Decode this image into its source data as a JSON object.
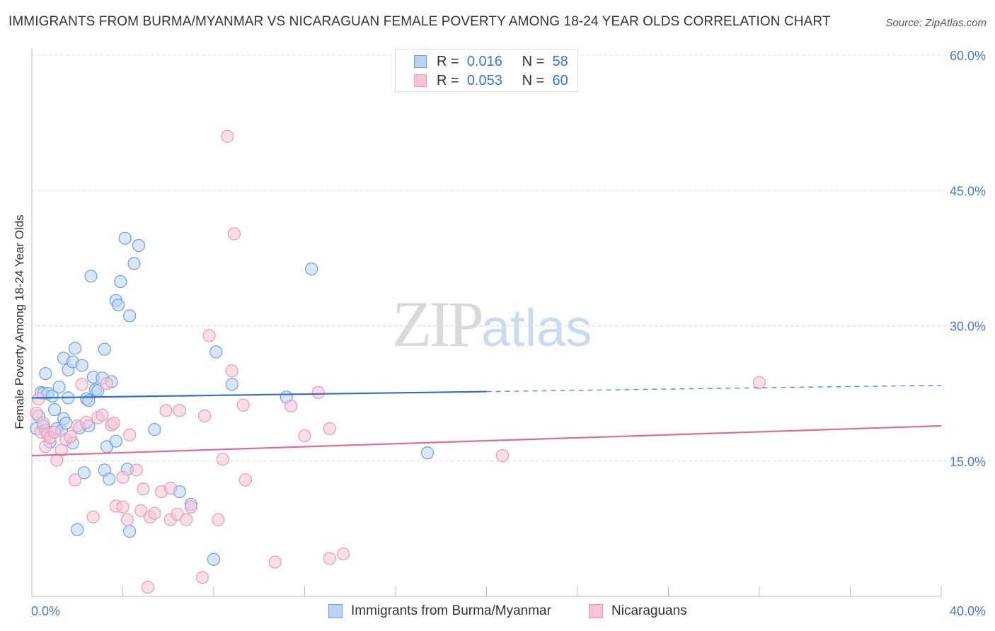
{
  "header": {
    "title": "IMMIGRANTS FROM BURMA/MYANMAR VS NICARAGUAN FEMALE POVERTY AMONG 18-24 YEAR OLDS CORRELATION CHART",
    "source": "Source: ZipAtlas.com"
  },
  "legend": {
    "series1": {
      "r_label": "R =",
      "r_value": "0.016",
      "n_label": "N =",
      "n_value": "58"
    },
    "series2": {
      "r_label": "R =",
      "r_value": "0.053",
      "n_label": "N =",
      "n_value": "60"
    }
  },
  "bottom_legend": {
    "series1": "Immigrants from Burma/Myanmar",
    "series2": "Nicaraguans"
  },
  "watermark": {
    "zip": "ZIP",
    "atlas": "atlas"
  },
  "colors": {
    "blue_fill": "#b9d3f5",
    "blue_stroke": "#6f9fe0",
    "blue_line": "#2f6fcf",
    "pink_fill": "#f8c4d5",
    "pink_stroke": "#e89ab4",
    "pink_line": "#e06b95",
    "tick_text": "#4a7bd0"
  },
  "chart_data": {
    "type": "scatter",
    "title": "IMMIGRANTS FROM BURMA/MYANMAR VS NICARAGUAN FEMALE POVERTY AMONG 18-24 YEAR OLDS CORRELATION CHART",
    "xlabel": "",
    "ylabel": "Female Poverty Among 18-24 Year Olds",
    "xlim": [
      0,
      40
    ],
    "ylim": [
      0,
      60
    ],
    "x_tick_labels": [
      "0.0%",
      "40.0%"
    ],
    "y_ticks": [
      15,
      30,
      45,
      60
    ],
    "y_tick_labels": [
      "15.0%",
      "30.0%",
      "45.0%",
      "60.0%"
    ],
    "series": [
      {
        "name": "Immigrants from Burma/Myanmar",
        "color": "blue",
        "trend": {
          "x0": 0,
          "y0": 22.0,
          "x1": 20,
          "y1": 22.7,
          "dashed_to_x": 40,
          "dashed_to_y": 23.4
        },
        "points": [
          [
            0.2,
            18.6
          ],
          [
            0.3,
            20.0
          ],
          [
            0.4,
            22.6
          ],
          [
            0.5,
            18.9
          ],
          [
            0.5,
            22.5
          ],
          [
            0.6,
            24.7
          ],
          [
            0.7,
            22.5
          ],
          [
            0.8,
            17.1
          ],
          [
            0.9,
            22.2
          ],
          [
            1.0,
            20.7
          ],
          [
            1.1,
            18.6
          ],
          [
            1.2,
            23.2
          ],
          [
            1.3,
            18.4
          ],
          [
            1.4,
            19.7
          ],
          [
            1.4,
            26.4
          ],
          [
            1.5,
            19.2
          ],
          [
            1.6,
            25.1
          ],
          [
            1.6,
            22.0
          ],
          [
            1.8,
            17.0
          ],
          [
            1.8,
            26.0
          ],
          [
            1.9,
            27.5
          ],
          [
            2.1,
            18.7
          ],
          [
            2.2,
            25.6
          ],
          [
            2.3,
            13.7
          ],
          [
            2.4,
            21.9
          ],
          [
            2.5,
            21.7
          ],
          [
            2.5,
            18.9
          ],
          [
            2.6,
            35.5
          ],
          [
            2.7,
            24.3
          ],
          [
            2.8,
            22.9
          ],
          [
            2.9,
            22.8
          ],
          [
            3.1,
            24.2
          ],
          [
            3.2,
            27.4
          ],
          [
            3.2,
            14.0
          ],
          [
            3.3,
            16.6
          ],
          [
            3.4,
            13.0
          ],
          [
            3.5,
            23.8
          ],
          [
            3.7,
            17.2
          ],
          [
            3.7,
            32.8
          ],
          [
            3.8,
            32.3
          ],
          [
            3.9,
            34.9
          ],
          [
            4.1,
            39.7
          ],
          [
            4.2,
            14.1
          ],
          [
            4.3,
            31.1
          ],
          [
            4.5,
            36.9
          ],
          [
            4.7,
            38.9
          ],
          [
            5.4,
            18.5
          ],
          [
            6.5,
            11.6
          ],
          [
            7.0,
            10.2
          ],
          [
            8.0,
            4.1
          ],
          [
            8.1,
            27.1
          ],
          [
            8.8,
            23.5
          ],
          [
            11.2,
            22.1
          ],
          [
            12.3,
            36.3
          ],
          [
            17.4,
            15.9
          ],
          [
            2.0,
            7.4
          ],
          [
            4.3,
            7.2
          ],
          [
            0.6,
            18.4
          ]
        ]
      },
      {
        "name": "Nicaraguans",
        "color": "pink",
        "trend": {
          "x0": 0,
          "y0": 15.6,
          "x1": 40,
          "y1": 18.9
        },
        "points": [
          [
            0.2,
            20.3
          ],
          [
            0.4,
            18.2
          ],
          [
            0.5,
            19.2
          ],
          [
            0.6,
            16.6
          ],
          [
            0.7,
            18.0
          ],
          [
            0.8,
            17.6
          ],
          [
            1.0,
            18.2
          ],
          [
            1.1,
            15.1
          ],
          [
            1.3,
            16.2
          ],
          [
            1.5,
            17.4
          ],
          [
            1.7,
            17.7
          ],
          [
            1.9,
            12.9
          ],
          [
            2.0,
            18.9
          ],
          [
            2.2,
            23.5
          ],
          [
            2.4,
            19.3
          ],
          [
            2.7,
            8.8
          ],
          [
            2.9,
            19.8
          ],
          [
            3.1,
            20.1
          ],
          [
            3.3,
            23.6
          ],
          [
            3.5,
            19.0
          ],
          [
            3.6,
            19.2
          ],
          [
            3.7,
            10.0
          ],
          [
            4.0,
            9.9
          ],
          [
            4.0,
            13.2
          ],
          [
            4.2,
            8.5
          ],
          [
            4.3,
            17.9
          ],
          [
            4.6,
            14.0
          ],
          [
            4.8,
            9.5
          ],
          [
            4.9,
            11.9
          ],
          [
            5.1,
            1.0
          ],
          [
            5.2,
            8.8
          ],
          [
            5.4,
            9.2
          ],
          [
            5.7,
            11.6
          ],
          [
            5.9,
            20.6
          ],
          [
            6.1,
            8.5
          ],
          [
            6.1,
            12.0
          ],
          [
            6.4,
            9.1
          ],
          [
            6.5,
            20.6
          ],
          [
            6.8,
            8.5
          ],
          [
            7.0,
            9.9
          ],
          [
            7.5,
            2.1
          ],
          [
            7.6,
            20.0
          ],
          [
            7.8,
            28.9
          ],
          [
            8.2,
            8.5
          ],
          [
            8.4,
            15.2
          ],
          [
            8.6,
            51.0
          ],
          [
            8.8,
            25.0
          ],
          [
            8.9,
            40.2
          ],
          [
            9.3,
            21.2
          ],
          [
            9.4,
            12.9
          ],
          [
            10.7,
            3.8
          ],
          [
            11.4,
            21.1
          ],
          [
            12.0,
            17.8
          ],
          [
            12.6,
            22.6
          ],
          [
            13.1,
            18.6
          ],
          [
            13.1,
            4.2
          ],
          [
            13.7,
            4.7
          ],
          [
            20.7,
            15.6
          ],
          [
            32.0,
            23.7
          ],
          [
            0.3,
            21.9
          ]
        ]
      }
    ]
  }
}
